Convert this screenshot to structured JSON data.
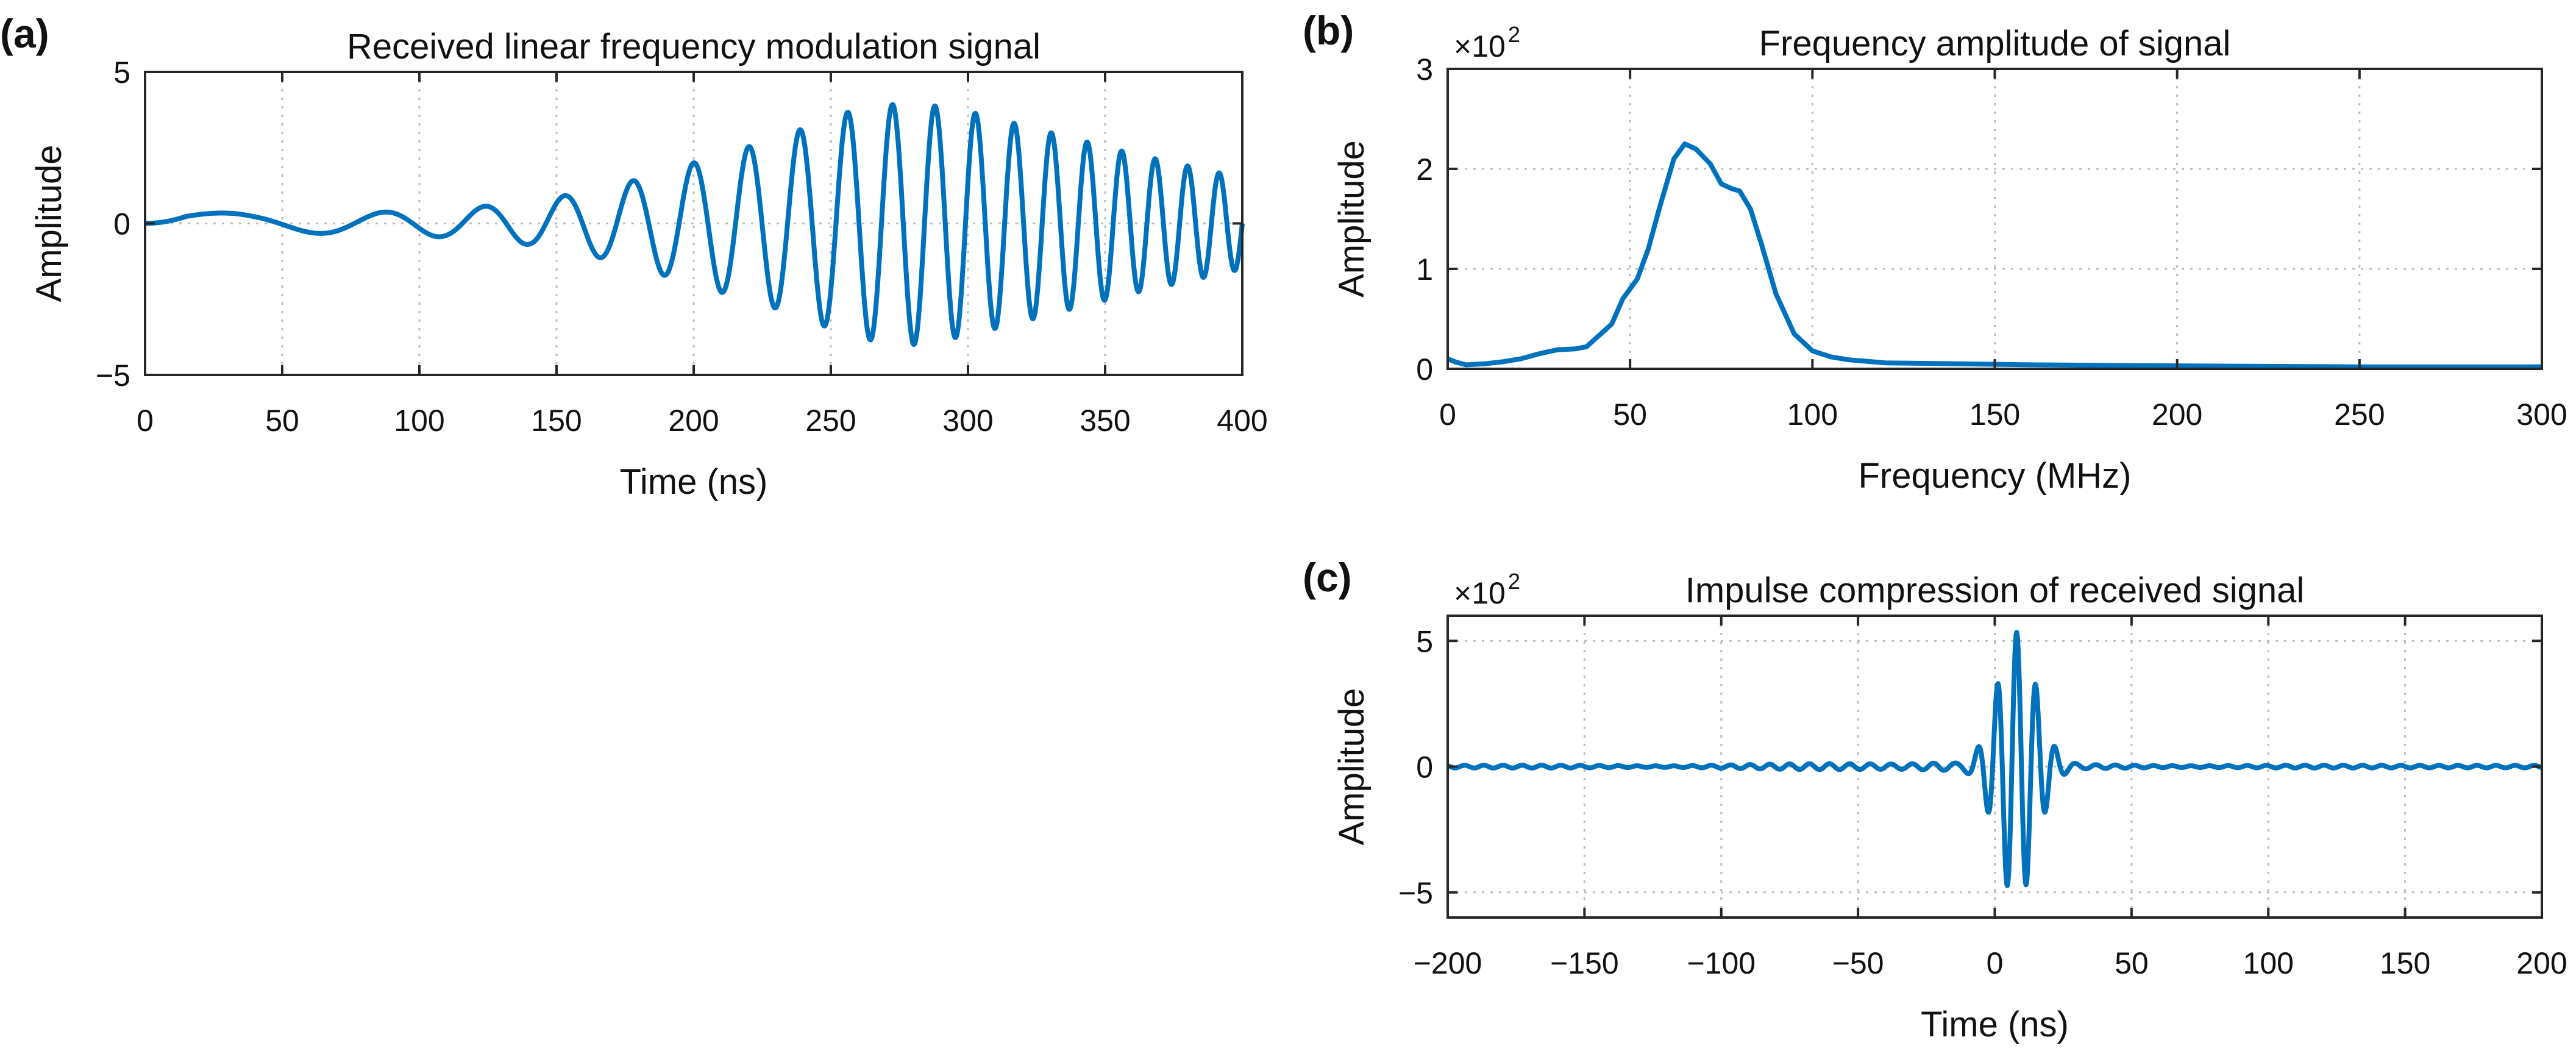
{
  "colors": {
    "line": "#0072BD",
    "axis": "#262626",
    "grid": "#BDBDBD"
  },
  "chart_data": [
    {
      "panel": "(a)",
      "type": "line",
      "title": "Received linear frequency modulation signal",
      "xlabel": "Time (ns)",
      "ylabel": "Amplitude",
      "xlim": [
        0,
        400
      ],
      "ylim": [
        -5,
        5
      ],
      "xticks": [
        0,
        50,
        100,
        150,
        200,
        250,
        300,
        350,
        400
      ],
      "xtick_labels": [
        "0",
        "50",
        "100",
        "150",
        "200",
        "250",
        "300",
        "350",
        "400"
      ],
      "yticks": [
        -5,
        0,
        5
      ],
      "ytick_labels": [
        "−5",
        "0",
        "5"
      ],
      "exponent_label": null,
      "grid": true,
      "series": [
        {
          "name": "received signal",
          "kind": "chirp",
          "t_range": [
            0,
            400
          ],
          "f0_ghz": 0.005,
          "f1_ghz": 0.09,
          "envelope_t": [
            0,
            15,
            40,
            80,
            110,
            140,
            170,
            200,
            230,
            260,
            280,
            300,
            330,
            360,
            380,
            400
          ],
          "envelope_a": [
            0.05,
            0.4,
            0.3,
            0.35,
            0.45,
            0.7,
            1.2,
            2.0,
            2.8,
            3.8,
            4.0,
            3.7,
            3.0,
            2.3,
            1.9,
            1.5
          ]
        }
      ]
    },
    {
      "panel": "(b)",
      "type": "line",
      "title": "Frequency amplitude of signal",
      "xlabel": "Frequency (MHz)",
      "ylabel": "Amplitude",
      "xlim": [
        0,
        300
      ],
      "ylim": [
        0,
        3
      ],
      "xticks": [
        0,
        50,
        100,
        150,
        200,
        250,
        300
      ],
      "xtick_labels": [
        "0",
        "50",
        "100",
        "150",
        "200",
        "250",
        "300"
      ],
      "yticks": [
        0,
        1,
        2,
        3
      ],
      "ytick_labels": [
        "0",
        "1",
        "2",
        "3"
      ],
      "exponent_label": {
        "base": "×10",
        "exp": "2"
      },
      "grid": true,
      "series": [
        {
          "name": "spectrum magnitude",
          "kind": "points",
          "x": [
            0,
            2,
            5,
            10,
            15,
            20,
            25,
            30,
            35,
            38,
            42,
            45,
            48,
            52,
            55,
            58,
            62,
            65,
            68,
            72,
            75,
            78,
            80,
            83,
            86,
            90,
            95,
            100,
            105,
            110,
            120,
            140,
            160,
            200,
            250,
            300
          ],
          "y": [
            0.1,
            0.07,
            0.04,
            0.05,
            0.07,
            0.1,
            0.15,
            0.19,
            0.2,
            0.22,
            0.35,
            0.45,
            0.7,
            0.9,
            1.2,
            1.6,
            2.1,
            2.25,
            2.2,
            2.05,
            1.85,
            1.8,
            1.78,
            1.6,
            1.25,
            0.75,
            0.35,
            0.18,
            0.12,
            0.09,
            0.06,
            0.05,
            0.04,
            0.03,
            0.02,
            0.02
          ]
        }
      ]
    },
    {
      "panel": "(c)",
      "type": "line",
      "title": "Impulse compression of received signal",
      "xlabel": "Time (ns)",
      "ylabel": "Amplitude",
      "xlim": [
        -200,
        200
      ],
      "ylim": [
        -6,
        6
      ],
      "xticks": [
        -200,
        -150,
        -100,
        -50,
        0,
        50,
        100,
        150,
        200
      ],
      "xtick_labels": [
        "−200",
        "−150",
        "−100",
        "−50",
        "0",
        "50",
        "100",
        "150",
        "200"
      ],
      "yticks": [
        -5,
        0,
        5
      ],
      "ytick_labels": [
        "−5",
        "0",
        "5"
      ],
      "exponent_label": {
        "base": "×10",
        "exp": "2"
      },
      "grid": true,
      "series": [
        {
          "name": "compressed pulse",
          "kind": "pulse",
          "t_range": [
            -200,
            200
          ],
          "peak_t": 8,
          "peak_value": 5.2,
          "min_value": -5.2,
          "carrier_period_ns": 7
        }
      ]
    }
  ]
}
